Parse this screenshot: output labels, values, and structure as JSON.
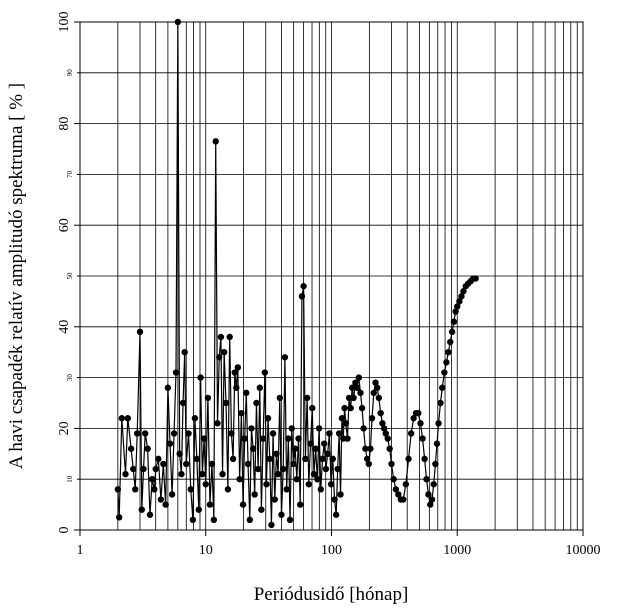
{
  "chart_data": {
    "type": "scatter",
    "xlabel": "Periódusidő [hónap]",
    "ylabel": "A havi csapadék relatív amplitudó spektruma [ % ]",
    "x_scale": "log",
    "xlim": [
      1,
      10000
    ],
    "ylim": [
      0,
      100
    ],
    "grid": true,
    "x_ticks": [
      {
        "value": 1,
        "label": "1"
      },
      {
        "value": 10,
        "label": "10"
      },
      {
        "value": 100,
        "label": "100"
      },
      {
        "value": 1000,
        "label": "1000"
      },
      {
        "value": 10000,
        "label": "10000"
      }
    ],
    "y_ticks_major": [
      {
        "value": 0,
        "label": "0"
      },
      {
        "value": 20,
        "label": "20"
      },
      {
        "value": 40,
        "label": "40"
      },
      {
        "value": 60,
        "label": "60"
      },
      {
        "value": 80,
        "label": "80"
      },
      {
        "value": 100,
        "label": "100"
      }
    ],
    "y_ticks_minor": [
      {
        "value": 10,
        "label": "10"
      },
      {
        "value": 30,
        "label": "30"
      },
      {
        "value": 50,
        "label": "50"
      },
      {
        "value": 70,
        "label": "70"
      },
      {
        "value": 90,
        "label": "90"
      }
    ],
    "series": [
      {
        "points": [
          [
            2.0,
            8
          ],
          [
            2.05,
            2.5
          ],
          [
            2.15,
            22
          ],
          [
            2.3,
            11
          ],
          [
            2.4,
            22
          ],
          [
            2.55,
            16
          ],
          [
            2.65,
            12
          ],
          [
            2.75,
            8
          ],
          [
            2.85,
            19
          ],
          [
            3.0,
            39
          ],
          [
            3.1,
            4
          ],
          [
            3.2,
            12
          ],
          [
            3.3,
            19
          ],
          [
            3.45,
            16
          ],
          [
            3.6,
            3
          ],
          [
            3.75,
            10
          ],
          [
            3.9,
            8
          ],
          [
            4.0,
            12
          ],
          [
            4.2,
            14
          ],
          [
            4.4,
            6
          ],
          [
            4.6,
            13
          ],
          [
            4.8,
            5
          ],
          [
            5.0,
            28
          ],
          [
            5.2,
            17
          ],
          [
            5.4,
            7
          ],
          [
            5.6,
            19
          ],
          [
            5.8,
            31
          ],
          [
            6.0,
            100
          ],
          [
            6.2,
            15
          ],
          [
            6.4,
            11
          ],
          [
            6.6,
            25
          ],
          [
            6.8,
            35
          ],
          [
            7.0,
            13
          ],
          [
            7.3,
            19
          ],
          [
            7.6,
            8
          ],
          [
            7.9,
            2
          ],
          [
            8.2,
            22
          ],
          [
            8.5,
            14
          ],
          [
            8.8,
            4
          ],
          [
            9.1,
            30
          ],
          [
            9.4,
            11
          ],
          [
            9.7,
            18
          ],
          [
            10.0,
            9
          ],
          [
            10.4,
            26
          ],
          [
            10.8,
            5
          ],
          [
            11.2,
            13
          ],
          [
            11.6,
            2
          ],
          [
            12.0,
            76.5
          ],
          [
            12.4,
            21
          ],
          [
            12.8,
            34
          ],
          [
            13.2,
            38
          ],
          [
            13.6,
            11
          ],
          [
            14.0,
            35
          ],
          [
            14.5,
            25
          ],
          [
            15.0,
            8
          ],
          [
            15.5,
            38
          ],
          [
            16.0,
            19
          ],
          [
            16.5,
            14
          ],
          [
            17.0,
            31
          ],
          [
            17.5,
            28
          ],
          [
            18.0,
            32
          ],
          [
            18.6,
            10
          ],
          [
            19.2,
            23
          ],
          [
            19.8,
            5
          ],
          [
            20.4,
            18
          ],
          [
            21.0,
            27
          ],
          [
            21.7,
            13
          ],
          [
            22.4,
            2
          ],
          [
            23.1,
            20
          ],
          [
            23.8,
            16
          ],
          [
            24.5,
            7
          ],
          [
            25.3,
            25
          ],
          [
            26.1,
            12
          ],
          [
            26.9,
            28
          ],
          [
            27.7,
            4
          ],
          [
            28.6,
            18
          ],
          [
            29.5,
            31
          ],
          [
            30.4,
            9
          ],
          [
            31.3,
            22
          ],
          [
            32.3,
            14
          ],
          [
            33.3,
            1
          ],
          [
            34.3,
            19
          ],
          [
            35.4,
            6
          ],
          [
            36.5,
            15
          ],
          [
            37.6,
            11
          ],
          [
            38.8,
            26
          ],
          [
            40.0,
            3
          ],
          [
            41.3,
            12
          ],
          [
            42.6,
            34
          ],
          [
            44.0,
            8
          ],
          [
            45.4,
            18
          ],
          [
            46.8,
            2
          ],
          [
            48.3,
            20
          ],
          [
            49.8,
            13
          ],
          [
            51.4,
            16
          ],
          [
            53.0,
            10
          ],
          [
            54.7,
            18
          ],
          [
            56.4,
            5
          ],
          [
            58.2,
            46
          ],
          [
            60.0,
            48
          ],
          [
            62.0,
            14
          ],
          [
            64.0,
            26
          ],
          [
            66.0,
            9
          ],
          [
            68.1,
            17
          ],
          [
            70.3,
            24
          ],
          [
            72.5,
            11
          ],
          [
            74.8,
            16
          ],
          [
            77.2,
            10
          ],
          [
            79.7,
            20
          ],
          [
            82.2,
            8
          ],
          [
            84.8,
            14
          ],
          [
            87.5,
            17
          ],
          [
            90.3,
            12
          ],
          [
            93.2,
            15
          ],
          [
            96.2,
            19
          ],
          [
            99.2,
            9
          ],
          [
            102.4,
            14
          ],
          [
            105.6,
            6
          ],
          [
            108.9,
            3
          ],
          [
            112.0,
            12
          ],
          [
            115.0,
            19
          ],
          [
            118.0,
            7
          ],
          [
            121.0,
            22
          ],
          [
            124.0,
            18
          ],
          [
            127.0,
            24
          ],
          [
            130.0,
            21
          ],
          [
            134.0,
            18
          ],
          [
            138.0,
            26
          ],
          [
            142.0,
            24
          ],
          [
            146.0,
            28
          ],
          [
            150.0,
            26
          ],
          [
            155.0,
            29
          ],
          [
            160.0,
            28
          ],
          [
            165.0,
            30
          ],
          [
            170.0,
            27
          ],
          [
            175.0,
            24
          ],
          [
            180.0,
            20
          ],
          [
            186.0,
            16
          ],
          [
            192.0,
            14
          ],
          [
            198.0,
            13
          ],
          [
            204.0,
            16
          ],
          [
            210.0,
            22
          ],
          [
            217.0,
            27
          ],
          [
            224.0,
            29
          ],
          [
            231.0,
            28
          ],
          [
            238.0,
            26
          ],
          [
            246.0,
            23
          ],
          [
            254.0,
            21
          ],
          [
            262.0,
            20
          ],
          [
            270.0,
            19
          ],
          [
            280.0,
            18
          ],
          [
            290.0,
            16
          ],
          [
            300.0,
            13
          ],
          [
            312.0,
            10
          ],
          [
            325.0,
            8
          ],
          [
            340.0,
            7
          ],
          [
            356.0,
            6
          ],
          [
            372.0,
            6
          ],
          [
            390.0,
            9
          ],
          [
            410.0,
            14
          ],
          [
            430.0,
            19
          ],
          [
            450.0,
            22
          ],
          [
            470.0,
            23
          ],
          [
            490.0,
            23
          ],
          [
            510.0,
            21
          ],
          [
            530.0,
            18
          ],
          [
            550.0,
            14
          ],
          [
            570.0,
            10
          ],
          [
            590.0,
            7
          ],
          [
            610.0,
            5
          ],
          [
            630.0,
            6
          ],
          [
            650.0,
            9
          ],
          [
            670.0,
            13
          ],
          [
            690.0,
            17
          ],
          [
            710.0,
            21
          ],
          [
            735.0,
            25
          ],
          [
            760.0,
            28
          ],
          [
            790.0,
            31
          ],
          [
            820.0,
            33
          ],
          [
            850.0,
            35
          ],
          [
            880.0,
            37
          ],
          [
            910.0,
            39
          ],
          [
            940.0,
            41
          ],
          [
            970.0,
            43
          ],
          [
            1000.0,
            44
          ],
          [
            1040.0,
            45
          ],
          [
            1080.0,
            46
          ],
          [
            1120.0,
            47
          ],
          [
            1170.0,
            48
          ],
          [
            1220.0,
            48.5
          ],
          [
            1280.0,
            49
          ],
          [
            1340.0,
            49.5
          ],
          [
            1400.0,
            49.5
          ]
        ]
      }
    ]
  }
}
